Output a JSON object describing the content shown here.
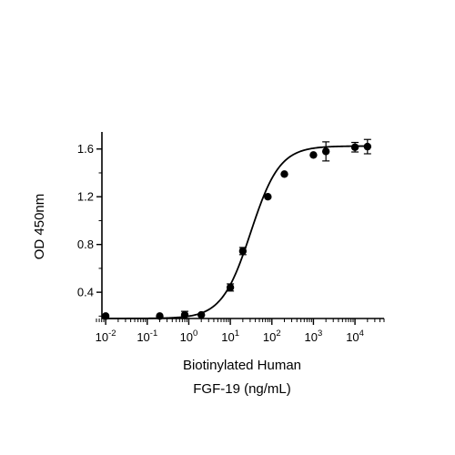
{
  "chart_data": {
    "type": "scatter",
    "xlabel_line1": "Biotinylated Human",
    "xlabel_line2": "FGF-19 (ng/mL)",
    "ylabel": "OD 450nm",
    "x_scale": "log",
    "xlim": [
      0.006,
      50000
    ],
    "ylim": [
      0.18,
      1.72
    ],
    "x_ticks": [
      {
        "value": 0.01,
        "base": "10",
        "exp": "-2"
      },
      {
        "value": 0.1,
        "base": "10",
        "exp": "-1"
      },
      {
        "value": 1,
        "base": "10",
        "exp": "0"
      },
      {
        "value": 10,
        "base": "10",
        "exp": "1"
      },
      {
        "value": 100,
        "base": "10",
        "exp": "2"
      },
      {
        "value": 1000,
        "base": "10",
        "exp": "3"
      },
      {
        "value": 10000,
        "base": "10",
        "exp": "4"
      }
    ],
    "y_ticks": [
      {
        "value": 0.4,
        "label": "0.4"
      },
      {
        "value": 0.8,
        "label": "0.8"
      },
      {
        "value": 1.2,
        "label": "1.2"
      },
      {
        "value": 1.6,
        "label": "1.6"
      }
    ],
    "points": [
      {
        "x": 0.01,
        "y": 0.2,
        "err": 0.01
      },
      {
        "x": 0.2,
        "y": 0.2,
        "err": 0.01
      },
      {
        "x": 0.8,
        "y": 0.21,
        "err": 0.03
      },
      {
        "x": 2,
        "y": 0.21,
        "err": 0.01
      },
      {
        "x": 10,
        "y": 0.44,
        "err": 0.03
      },
      {
        "x": 20,
        "y": 0.745,
        "err": 0.03
      },
      {
        "x": 80,
        "y": 1.2,
        "err": 0.01
      },
      {
        "x": 200,
        "y": 1.39,
        "err": 0.01
      },
      {
        "x": 1000,
        "y": 1.55,
        "err": 0.01
      },
      {
        "x": 2000,
        "y": 1.58,
        "err": 0.08
      },
      {
        "x": 10000,
        "y": 1.615,
        "err": 0.04
      },
      {
        "x": 20000,
        "y": 1.62,
        "err": 0.06
      }
    ],
    "fit": {
      "model": "4PL",
      "bottom": 0.18,
      "top": 1.625,
      "ec50": 31,
      "hill": 1.25
    }
  }
}
